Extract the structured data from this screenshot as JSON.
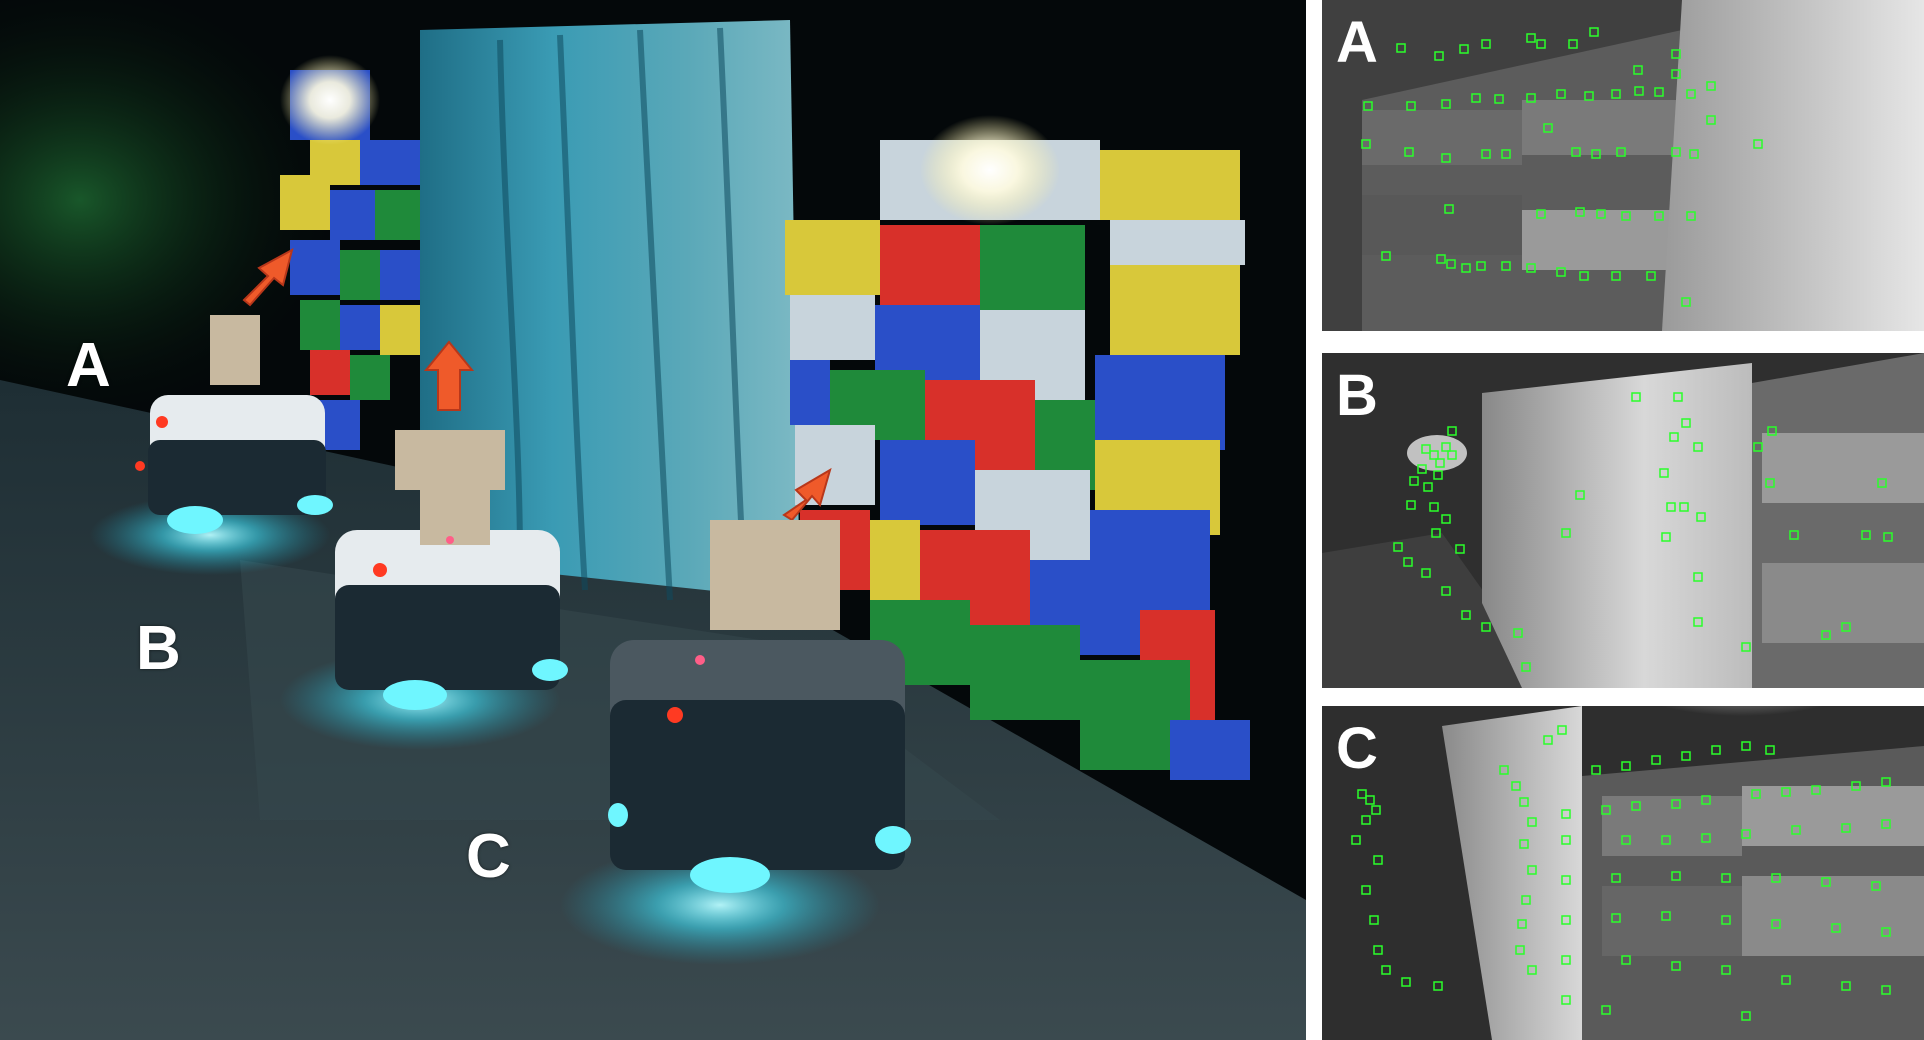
{
  "scene": {
    "robot_labels": [
      "A",
      "B",
      "C"
    ]
  },
  "panels": [
    {
      "label": "A"
    },
    {
      "label": "B"
    },
    {
      "label": "C"
    }
  ],
  "colors": {
    "feature_marker": "#2aff2a",
    "arrow": "#ef5a2a",
    "robot_glow": "#3fe6ff",
    "wall_red": "#d8302a",
    "wall_blue": "#2a4fc8",
    "wall_green": "#1f8a3a",
    "wall_yellow": "#d8c83a",
    "wall_white": "#c8d4dc"
  }
}
